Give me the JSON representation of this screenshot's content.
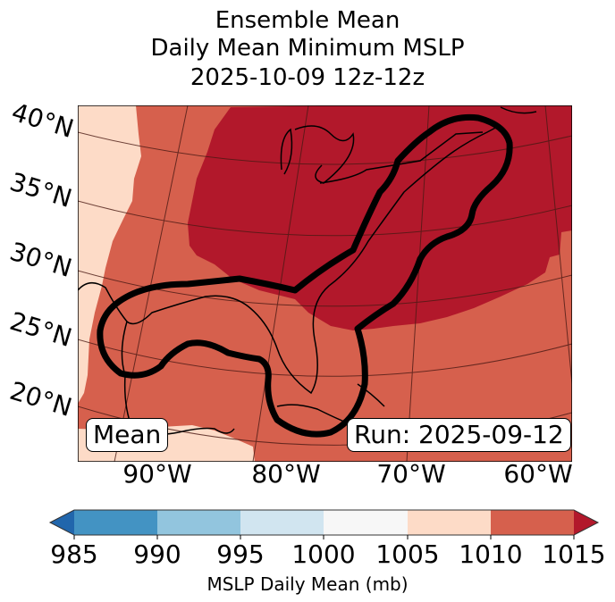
{
  "title": {
    "line1": "Ensemble Mean",
    "line2": "Daily Mean Minimum MSLP",
    "line3": "2025-10-09 12z-12z"
  },
  "map": {
    "projection": "Lambert Conformal",
    "lat_labels": [
      "40°N",
      "35°N",
      "30°N",
      "25°N",
      "20°N"
    ],
    "lon_labels": [
      "90°W",
      "80°W",
      "70°W",
      "60°W"
    ],
    "left_box": "Mean",
    "right_box": "Run: 2025-09-12",
    "regions": [
      {
        "name": "far-west strip",
        "range_mb": "1005-1010",
        "color": "#fddbc7"
      },
      {
        "name": "background",
        "range_mb": "1010-1015",
        "color": "#d6604d"
      },
      {
        "name": "central-east high",
        "range_mb": ">1015",
        "color": "#b2182b"
      }
    ],
    "contour_color": "#000000"
  },
  "colorbar": {
    "label": "MSLP Daily Mean (mb)",
    "ticks": [
      "985",
      "990",
      "995",
      "1000",
      "1005",
      "1010",
      "1015"
    ],
    "under_color": "#2166ac",
    "over_color": "#b2182b",
    "bins": [
      {
        "range": "985-990",
        "color": "#4393c3"
      },
      {
        "range": "990-995",
        "color": "#92c5de"
      },
      {
        "range": "995-1000",
        "color": "#d1e5f0"
      },
      {
        "range": "1000-1005",
        "color": "#f7f7f7"
      },
      {
        "range": "1005-1010",
        "color": "#fddbc7"
      },
      {
        "range": "1010-1015",
        "color": "#d6604d"
      }
    ]
  }
}
